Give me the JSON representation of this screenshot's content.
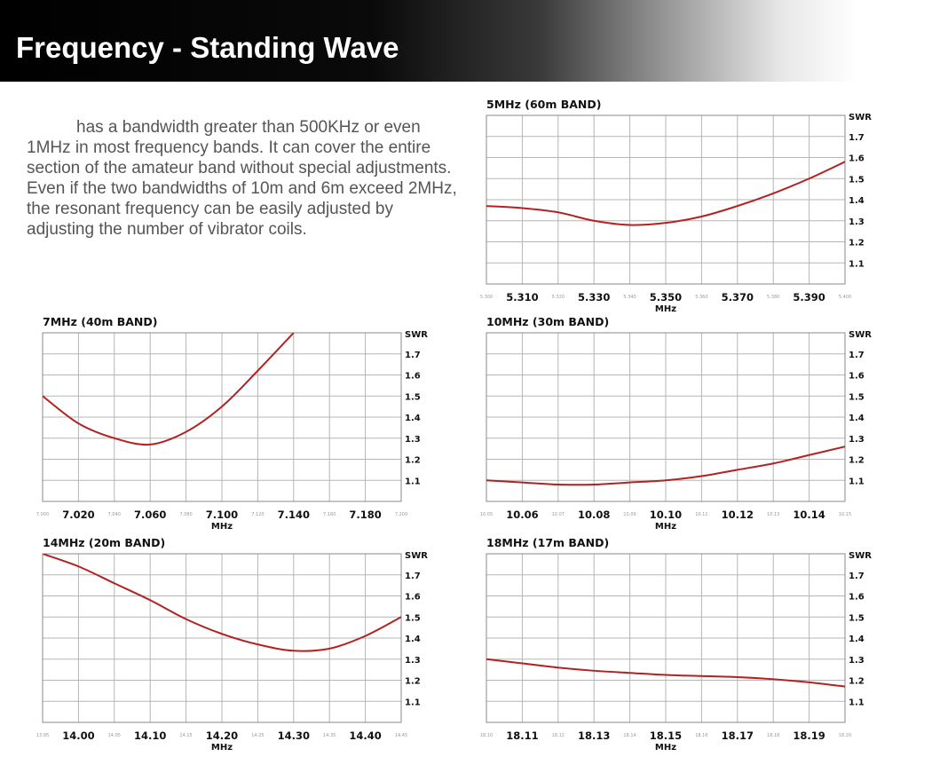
{
  "header": {
    "title": "Frequency - Standing Wave"
  },
  "description": [
    "has a bandwidth greater than 500KHz or even",
    "1MHz in most frequency bands. It can cover the entire",
    "section of the amateur band without special adjustments.",
    "Even if the two bandwidths of 10m and 6m exceed 2MHz,",
    "the resonant frequency can be easily adjusted by",
    "adjusting the number of vibrator coils."
  ],
  "colors": {
    "curve": "#b22222",
    "grid": "#b5b5b5"
  },
  "chart_data": [
    {
      "type": "line",
      "title": "5MHz (60m BAND)",
      "xlabel": "MHz",
      "ylabel": "SWR",
      "xlim": [
        5.3,
        5.4
      ],
      "ylim": [
        1.0,
        1.8
      ],
      "yticks": [
        "1.1",
        "1.2",
        "1.3",
        "1.4",
        "1.5",
        "1.6",
        "1.7"
      ],
      "xticks_major": [
        {
          "v": 5.31,
          "t": "5.310"
        },
        {
          "v": 5.33,
          "t": "5.330"
        },
        {
          "v": 5.35,
          "t": "5.350"
        },
        {
          "v": 5.37,
          "t": "5.370"
        },
        {
          "v": 5.39,
          "t": "5.390"
        }
      ],
      "xticks_minor": [
        {
          "v": 5.3,
          "t": "5.300"
        },
        {
          "v": 5.32,
          "t": "5.320"
        },
        {
          "v": 5.34,
          "t": "5.340"
        },
        {
          "v": 5.36,
          "t": "5.360"
        },
        {
          "v": 5.38,
          "t": "5.380"
        },
        {
          "v": 5.4,
          "t": "5.400"
        }
      ],
      "series": [
        {
          "x": [
            5.3,
            5.31,
            5.32,
            5.33,
            5.34,
            5.35,
            5.36,
            5.37,
            5.38,
            5.39,
            5.4
          ],
          "y": [
            1.37,
            1.36,
            1.34,
            1.3,
            1.28,
            1.29,
            1.32,
            1.37,
            1.43,
            1.5,
            1.58
          ]
        }
      ]
    },
    {
      "type": "line",
      "title": "7MHz (40m BAND)",
      "xlabel": "MHz",
      "ylabel": "SWR",
      "xlim": [
        7.0,
        7.2
      ],
      "ylim": [
        1.0,
        1.8
      ],
      "yticks": [
        "1.1",
        "1.2",
        "1.3",
        "1.4",
        "1.5",
        "1.6",
        "1.7"
      ],
      "xticks_major": [
        {
          "v": 7.02,
          "t": "7.020"
        },
        {
          "v": 7.06,
          "t": "7.060"
        },
        {
          "v": 7.1,
          "t": "7.100"
        },
        {
          "v": 7.14,
          "t": "7.140"
        },
        {
          "v": 7.18,
          "t": "7.180"
        }
      ],
      "xticks_minor": [
        {
          "v": 7.0,
          "t": "7.000"
        },
        {
          "v": 7.04,
          "t": "7.040"
        },
        {
          "v": 7.08,
          "t": "7.080"
        },
        {
          "v": 7.12,
          "t": "7.120"
        },
        {
          "v": 7.16,
          "t": "7.160"
        },
        {
          "v": 7.2,
          "t": "7.200"
        }
      ],
      "series": [
        {
          "x": [
            7.0,
            7.02,
            7.04,
            7.06,
            7.08,
            7.1,
            7.12,
            7.14
          ],
          "y": [
            1.5,
            1.37,
            1.3,
            1.27,
            1.33,
            1.45,
            1.62,
            1.8
          ]
        }
      ]
    },
    {
      "type": "line",
      "title": "10MHz (30m BAND)",
      "xlabel": "MHz",
      "ylabel": "SWR",
      "xlim": [
        10.05,
        10.15
      ],
      "ylim": [
        1.0,
        1.8
      ],
      "yticks": [
        "1.1",
        "1.2",
        "1.3",
        "1.4",
        "1.5",
        "1.6",
        "1.7"
      ],
      "xticks_major": [
        {
          "v": 10.06,
          "t": "10.06"
        },
        {
          "v": 10.08,
          "t": "10.08"
        },
        {
          "v": 10.1,
          "t": "10.10"
        },
        {
          "v": 10.12,
          "t": "10.12"
        },
        {
          "v": 10.14,
          "t": "10.14"
        }
      ],
      "xticks_minor": [
        {
          "v": 10.05,
          "t": "10.05"
        },
        {
          "v": 10.07,
          "t": "10.07"
        },
        {
          "v": 10.09,
          "t": "10.09"
        },
        {
          "v": 10.11,
          "t": "10.11"
        },
        {
          "v": 10.13,
          "t": "10.13"
        },
        {
          "v": 10.15,
          "t": "10.15"
        }
      ],
      "series": [
        {
          "x": [
            10.05,
            10.06,
            10.07,
            10.08,
            10.09,
            10.1,
            10.11,
            10.12,
            10.13,
            10.14,
            10.15
          ],
          "y": [
            1.1,
            1.09,
            1.08,
            1.08,
            1.09,
            1.1,
            1.12,
            1.15,
            1.18,
            1.22,
            1.26
          ]
        }
      ]
    },
    {
      "type": "line",
      "title": "14MHz (20m BAND)",
      "xlabel": "MHz",
      "ylabel": "SWR",
      "xlim": [
        13.95,
        14.45
      ],
      "ylim": [
        1.0,
        1.8
      ],
      "yticks": [
        "1.1",
        "1.2",
        "1.3",
        "1.4",
        "1.5",
        "1.6",
        "1.7"
      ],
      "xticks_major": [
        {
          "v": 14.0,
          "t": "14.00"
        },
        {
          "v": 14.1,
          "t": "14.10"
        },
        {
          "v": 14.2,
          "t": "14.20"
        },
        {
          "v": 14.3,
          "t": "14.30"
        },
        {
          "v": 14.4,
          "t": "14.40"
        }
      ],
      "xticks_minor": [
        {
          "v": 13.95,
          "t": "13.95"
        },
        {
          "v": 14.05,
          "t": "14.05"
        },
        {
          "v": 14.15,
          "t": "14.15"
        },
        {
          "v": 14.25,
          "t": "14.25"
        },
        {
          "v": 14.35,
          "t": "14.35"
        },
        {
          "v": 14.45,
          "t": "14.45"
        }
      ],
      "series": [
        {
          "x": [
            13.95,
            14.0,
            14.05,
            14.1,
            14.15,
            14.2,
            14.25,
            14.3,
            14.35,
            14.4,
            14.45
          ],
          "y": [
            1.8,
            1.74,
            1.66,
            1.58,
            1.49,
            1.42,
            1.37,
            1.34,
            1.35,
            1.41,
            1.5
          ]
        }
      ]
    },
    {
      "type": "line",
      "title": "18MHz (17m BAND)",
      "xlabel": "MHz",
      "ylabel": "SWR",
      "xlim": [
        18.1,
        18.2
      ],
      "ylim": [
        1.0,
        1.8
      ],
      "yticks": [
        "1.1",
        "1.2",
        "1.3",
        "1.4",
        "1.5",
        "1.6",
        "1.7"
      ],
      "xticks_major": [
        {
          "v": 18.11,
          "t": "18.11"
        },
        {
          "v": 18.13,
          "t": "18.13"
        },
        {
          "v": 18.15,
          "t": "18.15"
        },
        {
          "v": 18.17,
          "t": "18.17"
        },
        {
          "v": 18.19,
          "t": "18.19"
        }
      ],
      "xticks_minor": [
        {
          "v": 18.1,
          "t": "18.10"
        },
        {
          "v": 18.12,
          "t": "18.12"
        },
        {
          "v": 18.14,
          "t": "18.14"
        },
        {
          "v": 18.16,
          "t": "18.16"
        },
        {
          "v": 18.18,
          "t": "18.18"
        },
        {
          "v": 18.2,
          "t": "18.20"
        }
      ],
      "series": [
        {
          "x": [
            18.1,
            18.11,
            18.12,
            18.13,
            18.14,
            18.15,
            18.16,
            18.17,
            18.18,
            18.19,
            18.2
          ],
          "y": [
            1.3,
            1.28,
            1.26,
            1.245,
            1.235,
            1.225,
            1.22,
            1.215,
            1.205,
            1.19,
            1.17
          ]
        }
      ]
    }
  ]
}
